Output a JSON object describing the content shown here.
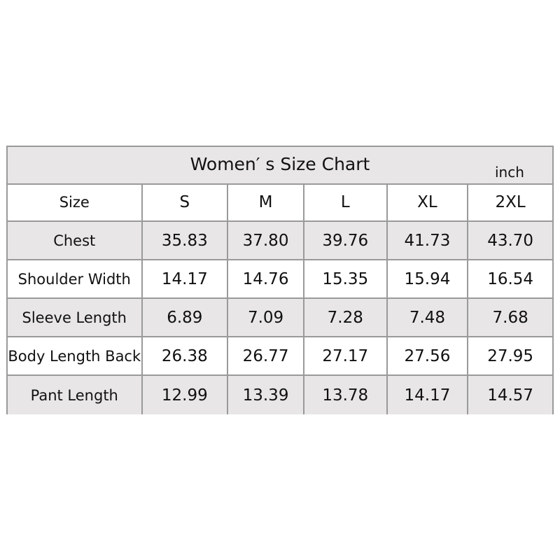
{
  "title": "Women′ s Size Chart",
  "unit": "inch",
  "header": [
    "Size",
    "S",
    "M",
    "L",
    "XL",
    "2XL"
  ],
  "rows": [
    {
      "label": "Chest",
      "values": [
        "35.83",
        "37.80",
        "39.76",
        "41.73",
        "43.70"
      ]
    },
    {
      "label": "Shoulder Width",
      "values": [
        "14.17",
        "14.76",
        "15.35",
        "15.94",
        "16.54"
      ]
    },
    {
      "label": "Sleeve  Length",
      "values": [
        "6.89",
        "7.09",
        "7.28",
        "7.48",
        "7.68"
      ]
    },
    {
      "label": "Body Length Back",
      "values": [
        "26.38",
        "26.77",
        "27.17",
        "27.56",
        "27.95"
      ]
    },
    {
      "label": "Pant  Length",
      "values": [
        "12.99",
        "13.39",
        "13.78",
        "14.17",
        "14.57"
      ]
    }
  ],
  "colors": {
    "shade": "#e8e6e7",
    "border": "#9a9a9a"
  }
}
